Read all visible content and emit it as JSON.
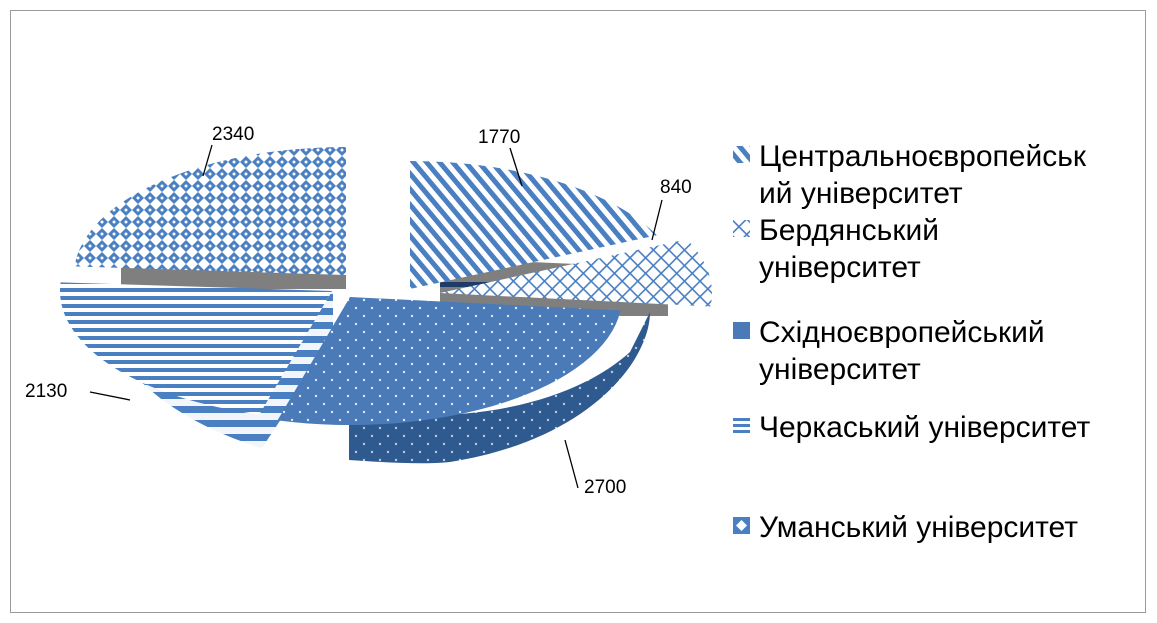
{
  "chart_data": {
    "type": "pie",
    "title": "",
    "style": "exploded 3d pie",
    "legend_position": "right",
    "units": "",
    "slices": [
      {
        "label": "Центральноєвропейський університет",
        "value": 1770,
        "pattern": "diagonal-stripes",
        "color": "#4a7fc1"
      },
      {
        "label": "Бердянський університет",
        "value": 840,
        "pattern": "cross-hatch",
        "color": "#4a7fc1"
      },
      {
        "label": "Східноєвропейський університет",
        "value": 2700,
        "pattern": "dots",
        "color": "#4a7ab8"
      },
      {
        "label": "Черкаський університет",
        "value": 2130,
        "pattern": "horizontal-stripes",
        "color": "#4a7fc1"
      },
      {
        "label": "Уманський університет",
        "value": 2340,
        "pattern": "diamonds",
        "color": "#4a7fc1"
      }
    ],
    "data_labels": [
      "1770",
      "840",
      "2700",
      "2130",
      "2340"
    ]
  },
  "legend": {
    "lines": [
      [
        "Центральноєвропейськ",
        "ий університет"
      ],
      [
        "Бердянський",
        "університет"
      ],
      [
        " Східноєвропейський",
        "університет"
      ],
      [
        "Черкаський університет"
      ],
      [
        "Уманський університет"
      ]
    ]
  }
}
